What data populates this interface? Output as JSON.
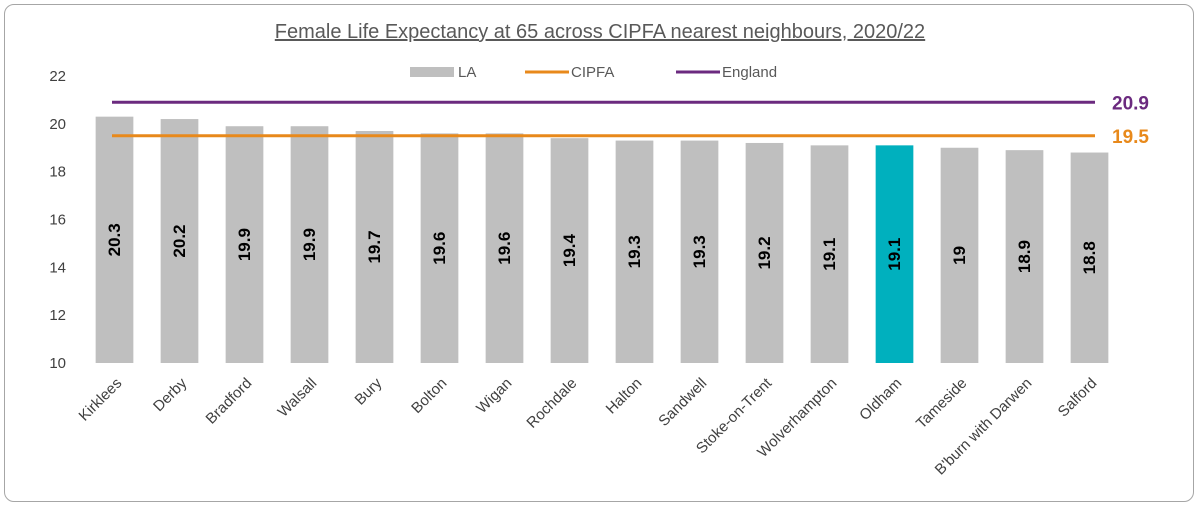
{
  "chart_data": {
    "type": "bar",
    "title": "Female Life Expectancy at 65 across CIPFA nearest neighbours, 2020/22",
    "xlabel": "",
    "ylabel": "",
    "ylim": [
      10,
      22
    ],
    "yticks": [
      "10",
      "12",
      "14",
      "16",
      "18",
      "20",
      "22"
    ],
    "grid": false,
    "legend_position": "top",
    "categories": [
      "Kirklees",
      "Derby",
      "Bradford",
      "Walsall",
      "Bury",
      "Bolton",
      "Wigan",
      "Rochdale",
      "Halton",
      "Sandwell",
      "Stoke-on-Trent",
      "Wolverhampton",
      "Oldham",
      "Tameside",
      "B'burn with Darwen",
      "Salford"
    ],
    "series": [
      {
        "name": "LA",
        "values": [
          20.3,
          20.2,
          19.9,
          19.9,
          19.7,
          19.6,
          19.6,
          19.4,
          19.3,
          19.3,
          19.2,
          19.1,
          19.1,
          19,
          18.9,
          18.8
        ],
        "labels": [
          "20.3",
          "20.2",
          "19.9",
          "19.9",
          "19.7",
          "19.6",
          "19.6",
          "19.4",
          "19.3",
          "19.3",
          "19.2",
          "19.1",
          "19.1",
          "19",
          "18.9",
          "18.8"
        ],
        "color": "#bfbfbf",
        "highlight": {
          "category": "Oldham",
          "color": "#00b0be"
        }
      }
    ],
    "reference_lines": [
      {
        "name": "CIPFA",
        "value": 19.5,
        "label": "19.5",
        "color": "#e8891b"
      },
      {
        "name": "England",
        "value": 20.9,
        "label": "20.9",
        "color": "#6b2a7f"
      }
    ]
  }
}
